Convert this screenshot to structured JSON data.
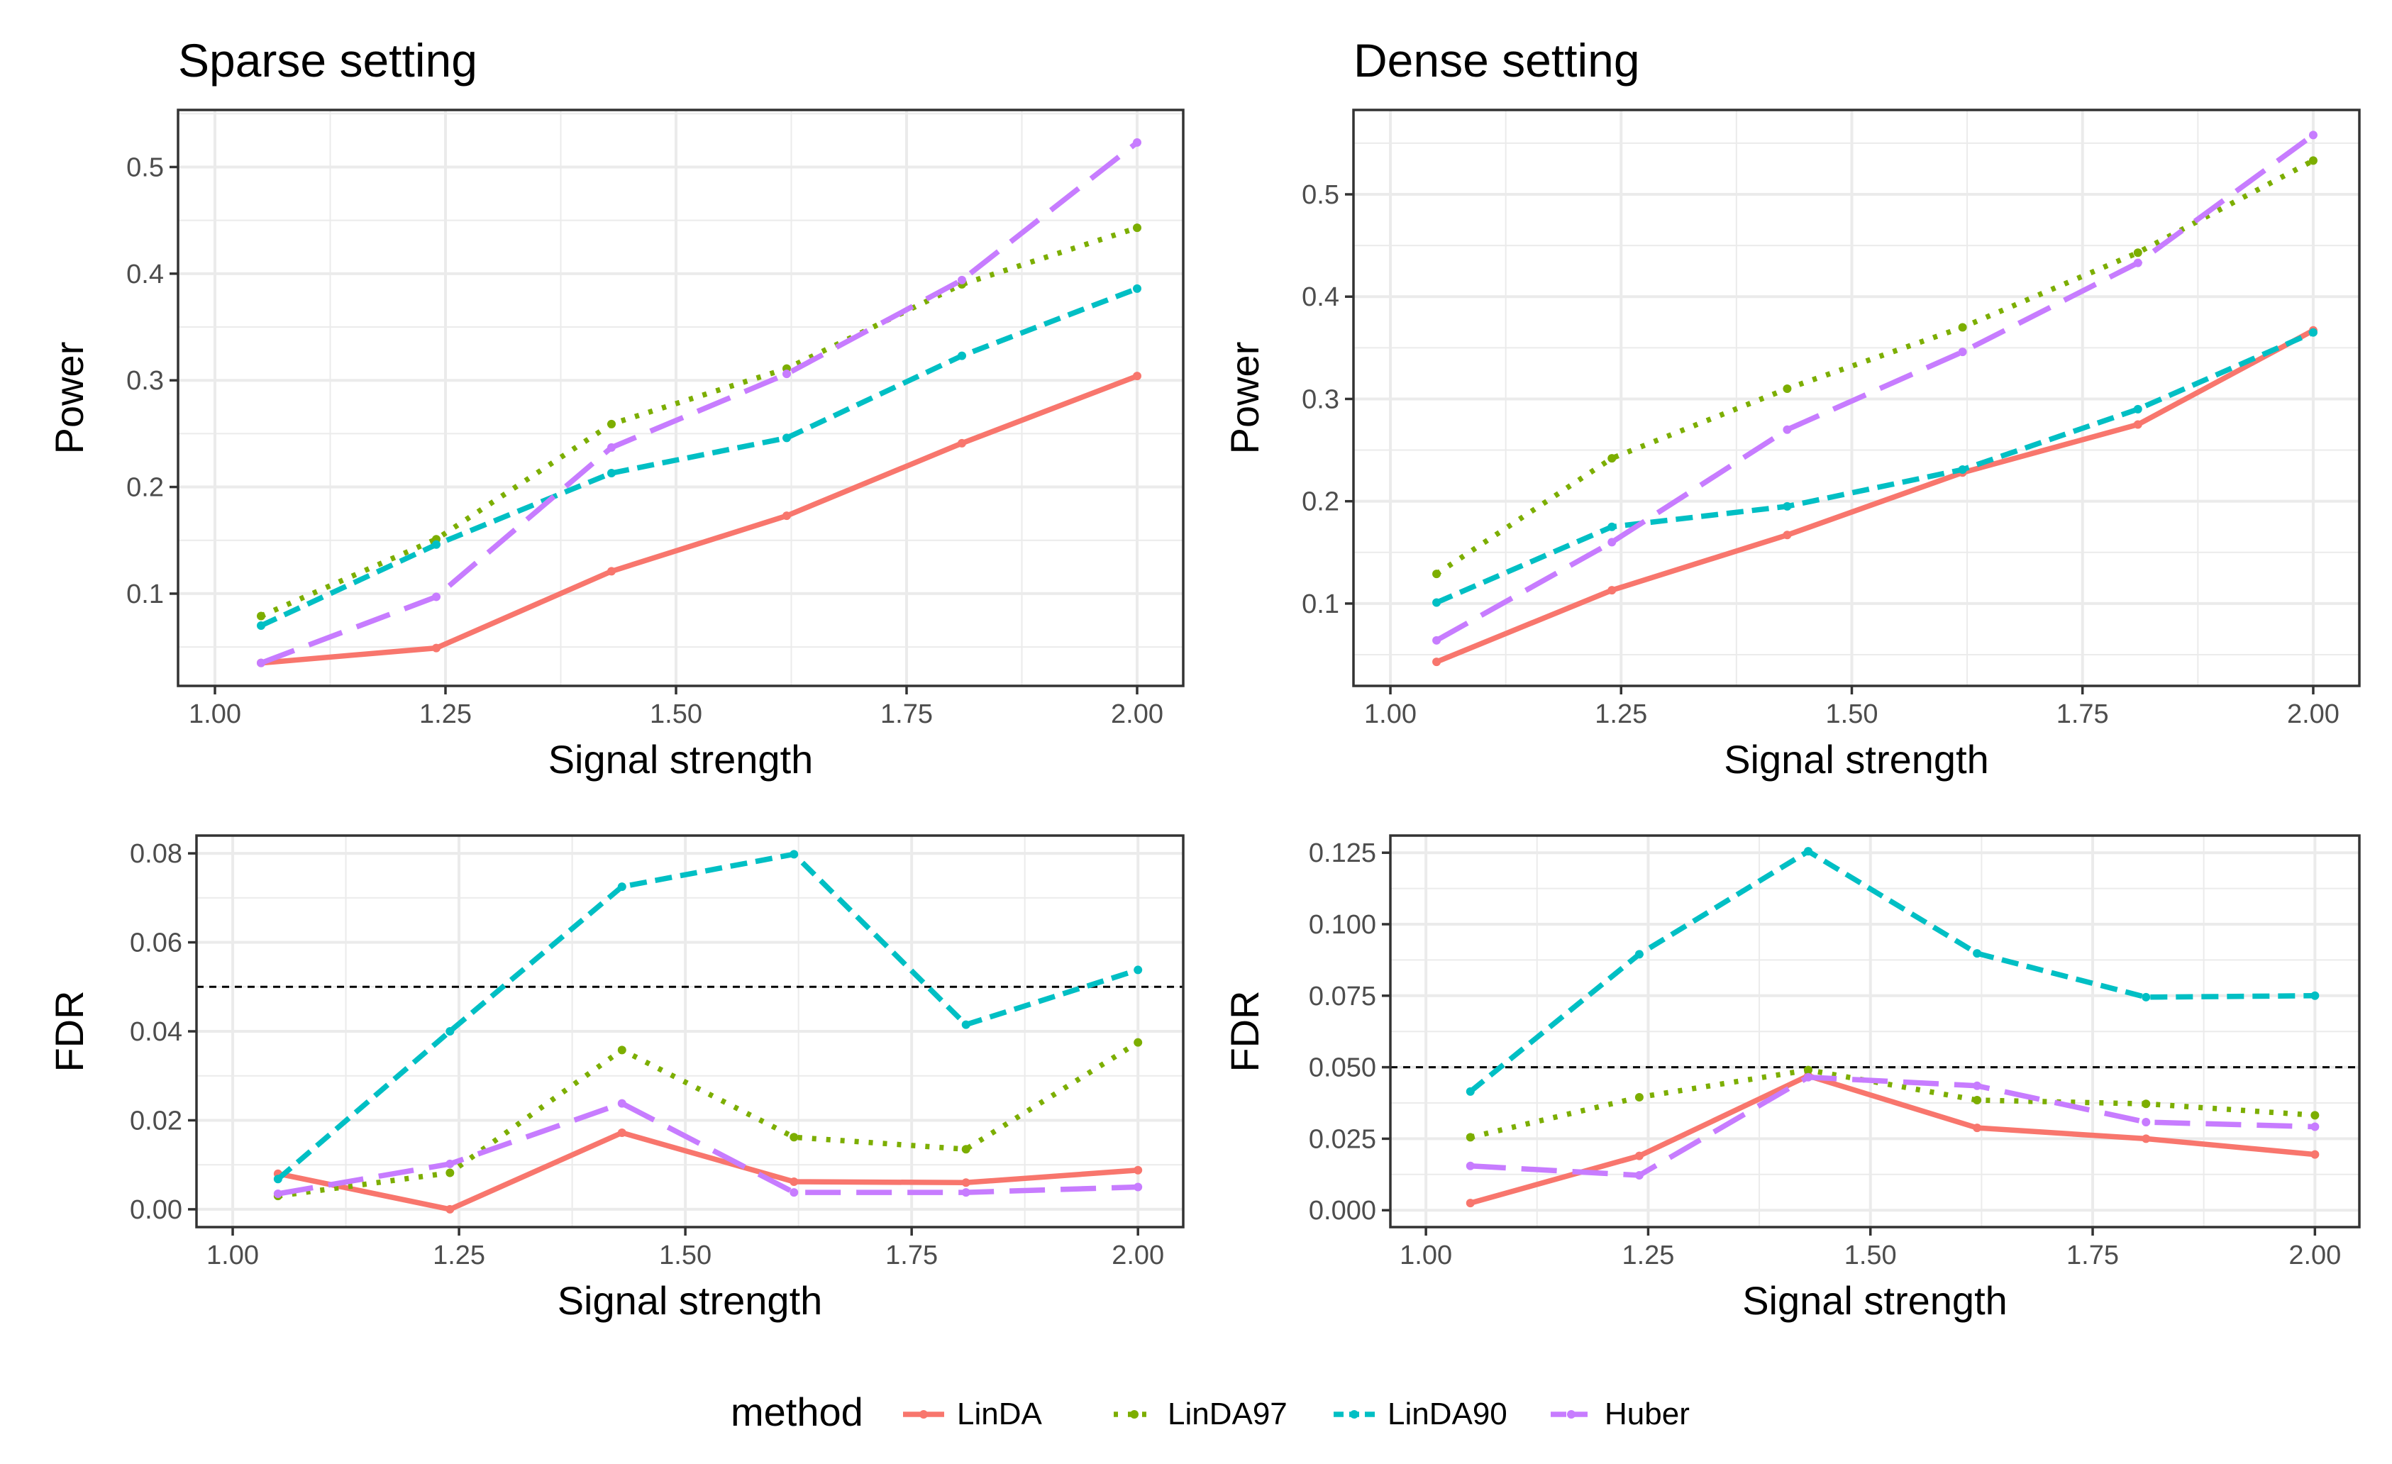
{
  "legend": {
    "title": "method",
    "items": [
      {
        "name": "LinDA",
        "color": "#F8766D",
        "dash": "solid"
      },
      {
        "name": "LinDA97",
        "color": "#7CAE00",
        "dash": "dotted"
      },
      {
        "name": "LinDA90",
        "color": "#00BFC4",
        "dash": "dashed"
      },
      {
        "name": "Huber",
        "color": "#C77CFF",
        "dash": "longdash"
      }
    ]
  },
  "chart_data": [
    {
      "type": "line",
      "title": "Sparse setting",
      "xlabel": "Signal strength",
      "ylabel": "Power",
      "xlim": [
        0.96,
        2.05
      ],
      "ylim": [
        0.0135,
        0.5535
      ],
      "xticks": [
        1.0,
        1.25,
        1.5,
        1.75,
        2.0
      ],
      "xtick_labels": [
        "1.00",
        "1.25",
        "1.50",
        "1.75",
        "2.00"
      ],
      "yticks": [
        0.1,
        0.2,
        0.3,
        0.4,
        0.5
      ],
      "ytick_labels": [
        "0.1",
        "0.2",
        "0.3",
        "0.4",
        "0.5"
      ],
      "x": [
        1.05,
        1.24,
        1.43,
        1.62,
        1.81,
        2.0
      ],
      "series": [
        {
          "name": "LinDA",
          "values": [
            0.035,
            0.049,
            0.121,
            0.173,
            0.241,
            0.304
          ]
        },
        {
          "name": "LinDA97",
          "values": [
            0.079,
            0.151,
            0.259,
            0.311,
            0.39,
            0.443
          ]
        },
        {
          "name": "LinDA90",
          "values": [
            0.07,
            0.146,
            0.213,
            0.246,
            0.323,
            0.386
          ]
        },
        {
          "name": "Huber",
          "values": [
            0.035,
            0.097,
            0.237,
            0.306,
            0.394,
            0.523
          ]
        }
      ]
    },
    {
      "type": "line",
      "title": "Dense setting",
      "xlabel": "Signal strength",
      "ylabel": "Power",
      "xlim": [
        0.96,
        2.05
      ],
      "ylim": [
        0.0195,
        0.5825
      ],
      "xticks": [
        1.0,
        1.25,
        1.5,
        1.75,
        2.0
      ],
      "xtick_labels": [
        "1.00",
        "1.25",
        "1.50",
        "1.75",
        "2.00"
      ],
      "yticks": [
        0.1,
        0.2,
        0.3,
        0.4,
        0.5
      ],
      "ytick_labels": [
        "0.1",
        "0.2",
        "0.3",
        "0.4",
        "0.5"
      ],
      "x": [
        1.05,
        1.24,
        1.43,
        1.62,
        1.81,
        2.0
      ],
      "series": [
        {
          "name": "LinDA",
          "values": [
            0.043,
            0.113,
            0.167,
            0.228,
            0.275,
            0.367
          ]
        },
        {
          "name": "LinDA97",
          "values": [
            0.129,
            0.242,
            0.31,
            0.37,
            0.443,
            0.533
          ]
        },
        {
          "name": "LinDA90",
          "values": [
            0.101,
            0.175,
            0.195,
            0.231,
            0.29,
            0.365
          ]
        },
        {
          "name": "Huber",
          "values": [
            0.064,
            0.16,
            0.27,
            0.346,
            0.433,
            0.558
          ]
        }
      ]
    },
    {
      "type": "line",
      "title": "",
      "xlabel": "Signal strength",
      "ylabel": "FDR",
      "xlim": [
        0.96,
        2.05
      ],
      "ylim": [
        -0.004,
        0.084
      ],
      "xticks": [
        1.0,
        1.25,
        1.5,
        1.75,
        2.0
      ],
      "xtick_labels": [
        "1.00",
        "1.25",
        "1.50",
        "1.75",
        "2.00"
      ],
      "yticks": [
        0.0,
        0.02,
        0.04,
        0.06,
        0.08
      ],
      "ytick_labels": [
        "0.00",
        "0.02",
        "0.04",
        "0.06",
        "0.08"
      ],
      "hline": 0.05,
      "x": [
        1.05,
        1.24,
        1.43,
        1.62,
        1.81,
        2.0
      ],
      "series": [
        {
          "name": "LinDA",
          "values": [
            0.008,
            0.0,
            0.0172,
            0.0062,
            0.006,
            0.0088
          ]
        },
        {
          "name": "LinDA97",
          "values": [
            0.003,
            0.0082,
            0.0358,
            0.0162,
            0.0135,
            0.0375
          ]
        },
        {
          "name": "LinDA90",
          "values": [
            0.0068,
            0.04,
            0.0725,
            0.0798,
            0.0415,
            0.0538
          ]
        },
        {
          "name": "Huber",
          "values": [
            0.0035,
            0.0102,
            0.0238,
            0.0038,
            0.0038,
            0.005
          ]
        }
      ]
    },
    {
      "type": "line",
      "title": "",
      "xlabel": "Signal strength",
      "ylabel": "FDR",
      "xlim": [
        0.96,
        2.05
      ],
      "ylim": [
        -0.0059,
        0.131
      ],
      "xticks": [
        1.0,
        1.25,
        1.5,
        1.75,
        2.0
      ],
      "xtick_labels": [
        "1.00",
        "1.25",
        "1.50",
        "1.75",
        "2.00"
      ],
      "yticks": [
        0.0,
        0.025,
        0.05,
        0.075,
        0.1,
        0.125
      ],
      "ytick_labels": [
        "0.000",
        "0.025",
        "0.050",
        "0.075",
        "0.100",
        "0.125"
      ],
      "hline": 0.05,
      "x": [
        1.05,
        1.24,
        1.43,
        1.62,
        1.81,
        2.0
      ],
      "series": [
        {
          "name": "LinDA",
          "values": [
            0.0025,
            0.019,
            0.047,
            0.0288,
            0.025,
            0.0195
          ]
        },
        {
          "name": "LinDA97",
          "values": [
            0.0255,
            0.0395,
            0.049,
            0.0385,
            0.0372,
            0.0332
          ]
        },
        {
          "name": "LinDA90",
          "values": [
            0.0415,
            0.0895,
            0.1255,
            0.0898,
            0.0745,
            0.075
          ]
        },
        {
          "name": "Huber",
          "values": [
            0.0155,
            0.0122,
            0.0465,
            0.0435,
            0.0308,
            0.0292
          ]
        }
      ]
    }
  ]
}
